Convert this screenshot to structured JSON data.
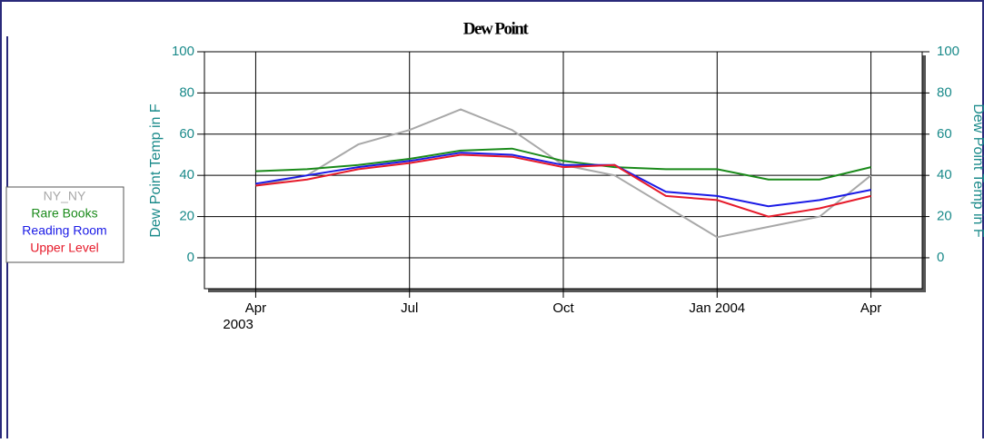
{
  "chart_data": {
    "type": "line",
    "title": "Dew Point",
    "x": [
      "2003-04",
      "2003-05",
      "2003-06",
      "2003-07",
      "2003-08",
      "2003-09",
      "2003-10",
      "2003-11",
      "2003-12",
      "2004-01",
      "2004-02",
      "2004-03",
      "2004-04"
    ],
    "series": [
      {
        "name": "NY_NY",
        "color": "#a8a8a8",
        "values": [
          35,
          40,
          55,
          62,
          72,
          62,
          45,
          40,
          25,
          10,
          15,
          20,
          40
        ]
      },
      {
        "name": "Rare Books",
        "color": "#1a8a1a",
        "values": [
          42,
          43,
          45,
          48,
          52,
          53,
          47,
          44,
          43,
          43,
          38,
          38,
          44
        ]
      },
      {
        "name": "Reading Room",
        "color": "#1a1ae6",
        "values": [
          36,
          40,
          44,
          47,
          51,
          50,
          45,
          45,
          32,
          30,
          25,
          28,
          33
        ]
      },
      {
        "name": "Upper Level",
        "color": "#e61a2a",
        "values": [
          35,
          38,
          43,
          46,
          50,
          49,
          44,
          45,
          30,
          28,
          20,
          24,
          30
        ]
      }
    ],
    "xlim": [
      "2003-03",
      "2004-05"
    ],
    "xticks": [
      {
        "value": "2003-04",
        "label": "Apr"
      },
      {
        "value": "2003-07",
        "label": "Jul"
      },
      {
        "value": "2003-10",
        "label": "Oct"
      },
      {
        "value": "2004-01",
        "label": "Jan 2004"
      },
      {
        "value": "2004-04",
        "label": "Apr"
      }
    ],
    "x_start_year": "2003",
    "ylim": [
      -15,
      100
    ],
    "yticks": [
      0,
      20,
      40,
      60,
      80,
      100
    ],
    "y2lim": [
      -15,
      100
    ],
    "y2ticks": [
      0,
      20,
      40,
      60,
      80,
      100
    ],
    "ylabel": "Dew Point Temp in F",
    "y2label": "Dew Point Temp in F",
    "grid": true
  }
}
